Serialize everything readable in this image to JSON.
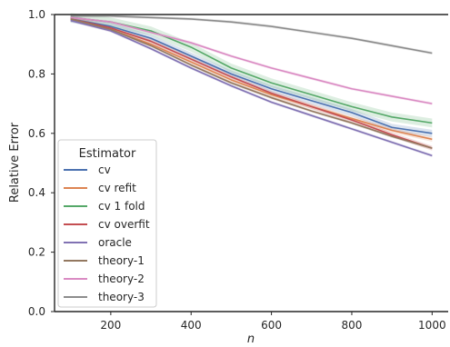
{
  "chart_data": {
    "type": "line",
    "xlabel": "n",
    "ylabel": "Relative Error",
    "xlim": [
      60,
      1040
    ],
    "ylim": [
      0.0,
      1.0
    ],
    "xticks": [
      200,
      400,
      600,
      800,
      1000
    ],
    "yticks": [
      0.0,
      0.2,
      0.4,
      0.6,
      0.8,
      1.0
    ],
    "ytick_labels": [
      "0.0",
      "0.2",
      "0.4",
      "0.6",
      "0.8",
      "1.0"
    ],
    "grid": false,
    "legend": {
      "title": "Estimator",
      "placement": "lower-left"
    },
    "x": [
      100,
      200,
      300,
      400,
      500,
      600,
      700,
      800,
      900,
      1000
    ],
    "series": [
      {
        "name": "cv",
        "color": "#4c72b0",
        "values": [
          0.985,
          0.96,
          0.92,
          0.86,
          0.8,
          0.75,
          0.71,
          0.67,
          0.62,
          0.6
        ],
        "band": 0.012
      },
      {
        "name": "cv refit",
        "color": "#dd8452",
        "values": [
          0.985,
          0.95,
          0.9,
          0.84,
          0.78,
          0.73,
          0.69,
          0.65,
          0.61,
          0.58
        ],
        "band": 0.008
      },
      {
        "name": "cv 1 fold",
        "color": "#55a868",
        "values": [
          0.99,
          0.975,
          0.945,
          0.89,
          0.82,
          0.77,
          0.73,
          0.69,
          0.655,
          0.635
        ],
        "band": 0.015
      },
      {
        "name": "cv overfit",
        "color": "#c44e52",
        "values": [
          0.985,
          0.955,
          0.91,
          0.85,
          0.79,
          0.735,
          0.69,
          0.645,
          0.595,
          0.55
        ],
        "band": 0.008
      },
      {
        "name": "oracle",
        "color": "#8172b3",
        "values": [
          0.98,
          0.945,
          0.885,
          0.82,
          0.76,
          0.705,
          0.66,
          0.615,
          0.57,
          0.525
        ],
        "band": 0.005
      },
      {
        "name": "theory-1",
        "color": "#937860",
        "values": [
          0.985,
          0.95,
          0.895,
          0.83,
          0.77,
          0.72,
          0.675,
          0.635,
          0.59,
          0.55
        ],
        "band": 0.005
      },
      {
        "name": "theory-2",
        "color": "#da8bc3",
        "values": [
          0.99,
          0.975,
          0.94,
          0.905,
          0.86,
          0.82,
          0.785,
          0.75,
          0.725,
          0.7
        ],
        "band": 0.005
      },
      {
        "name": "theory-3",
        "color": "#8c8c8c",
        "values": [
          0.995,
          0.995,
          0.99,
          0.985,
          0.975,
          0.96,
          0.94,
          0.92,
          0.895,
          0.87
        ],
        "band": 0.005
      }
    ]
  }
}
